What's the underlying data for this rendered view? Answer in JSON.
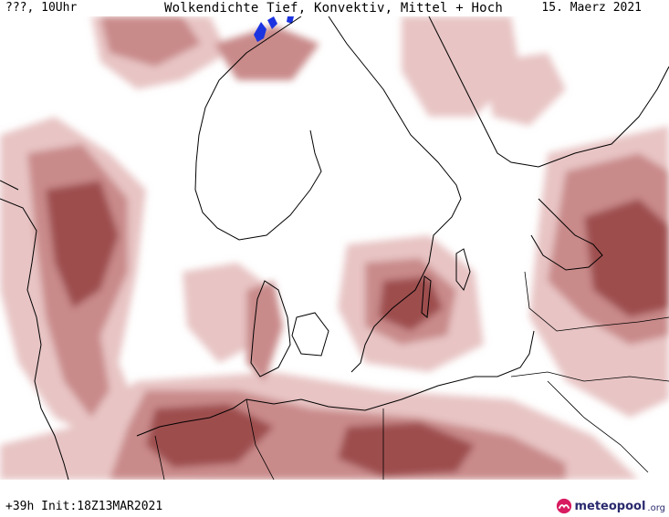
{
  "header": {
    "left": "???, 10Uhr",
    "title": "Wolkendichte  Tief, Konvektiv, Mittel + Hoch",
    "date": "15. Maerz 2021"
  },
  "footer": {
    "run_info": "+39h Init:18Z13MAR2021"
  },
  "logo": {
    "main": "meteopool",
    "tld": ".org",
    "icon": "meteopool-logo-icon"
  },
  "colors": {
    "cloud_light": "#e8c4c4",
    "cloud_medium": "#c98a8a",
    "cloud_dark": "#9e4e4e",
    "precip_snow": "#1c34e0",
    "coastline": "#000000"
  }
}
